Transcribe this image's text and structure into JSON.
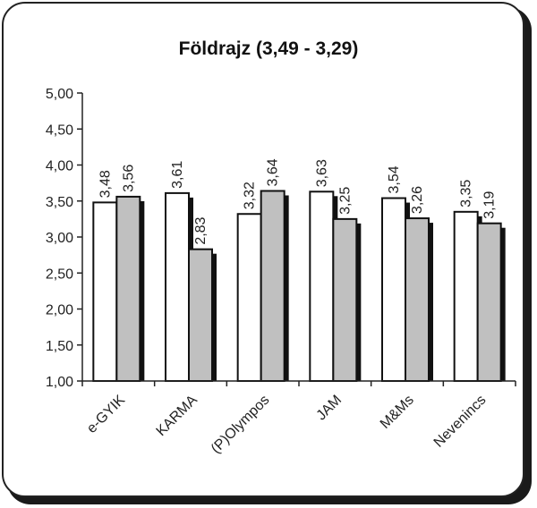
{
  "chart_data": {
    "type": "bar",
    "title": "Földrajz (3,49 - 3,29)",
    "xlabel": "",
    "ylabel": "",
    "categories": [
      "e-GYIK",
      "KARMA",
      "(P)Olympos",
      "JAM",
      "M&Ms",
      "Nevenincs"
    ],
    "series": [
      {
        "values": [
          3.48,
          3.61,
          3.32,
          3.63,
          3.54,
          3.35
        ],
        "value_labels": [
          "3,48",
          "3,61",
          "3,32",
          "3,63",
          "3,54",
          "3,35"
        ],
        "color": "#ffffff"
      },
      {
        "values": [
          3.56,
          2.83,
          3.64,
          3.25,
          3.26,
          3.19
        ],
        "value_labels": [
          "3,56",
          "2,83",
          "3,64",
          "3,25",
          "3,26",
          "3,19"
        ],
        "color": "#c0c0c0"
      }
    ],
    "ylim": [
      1.0,
      5.0
    ],
    "y_ticks": [
      1.0,
      1.5,
      2.0,
      2.5,
      3.0,
      3.5,
      4.0,
      4.5,
      5.0
    ],
    "y_tick_labels": [
      "1,00",
      "1,50",
      "2,00",
      "2,50",
      "3,00",
      "3,50",
      "4,00",
      "4,50",
      "5,00"
    ],
    "grid": false,
    "legend": "none"
  }
}
